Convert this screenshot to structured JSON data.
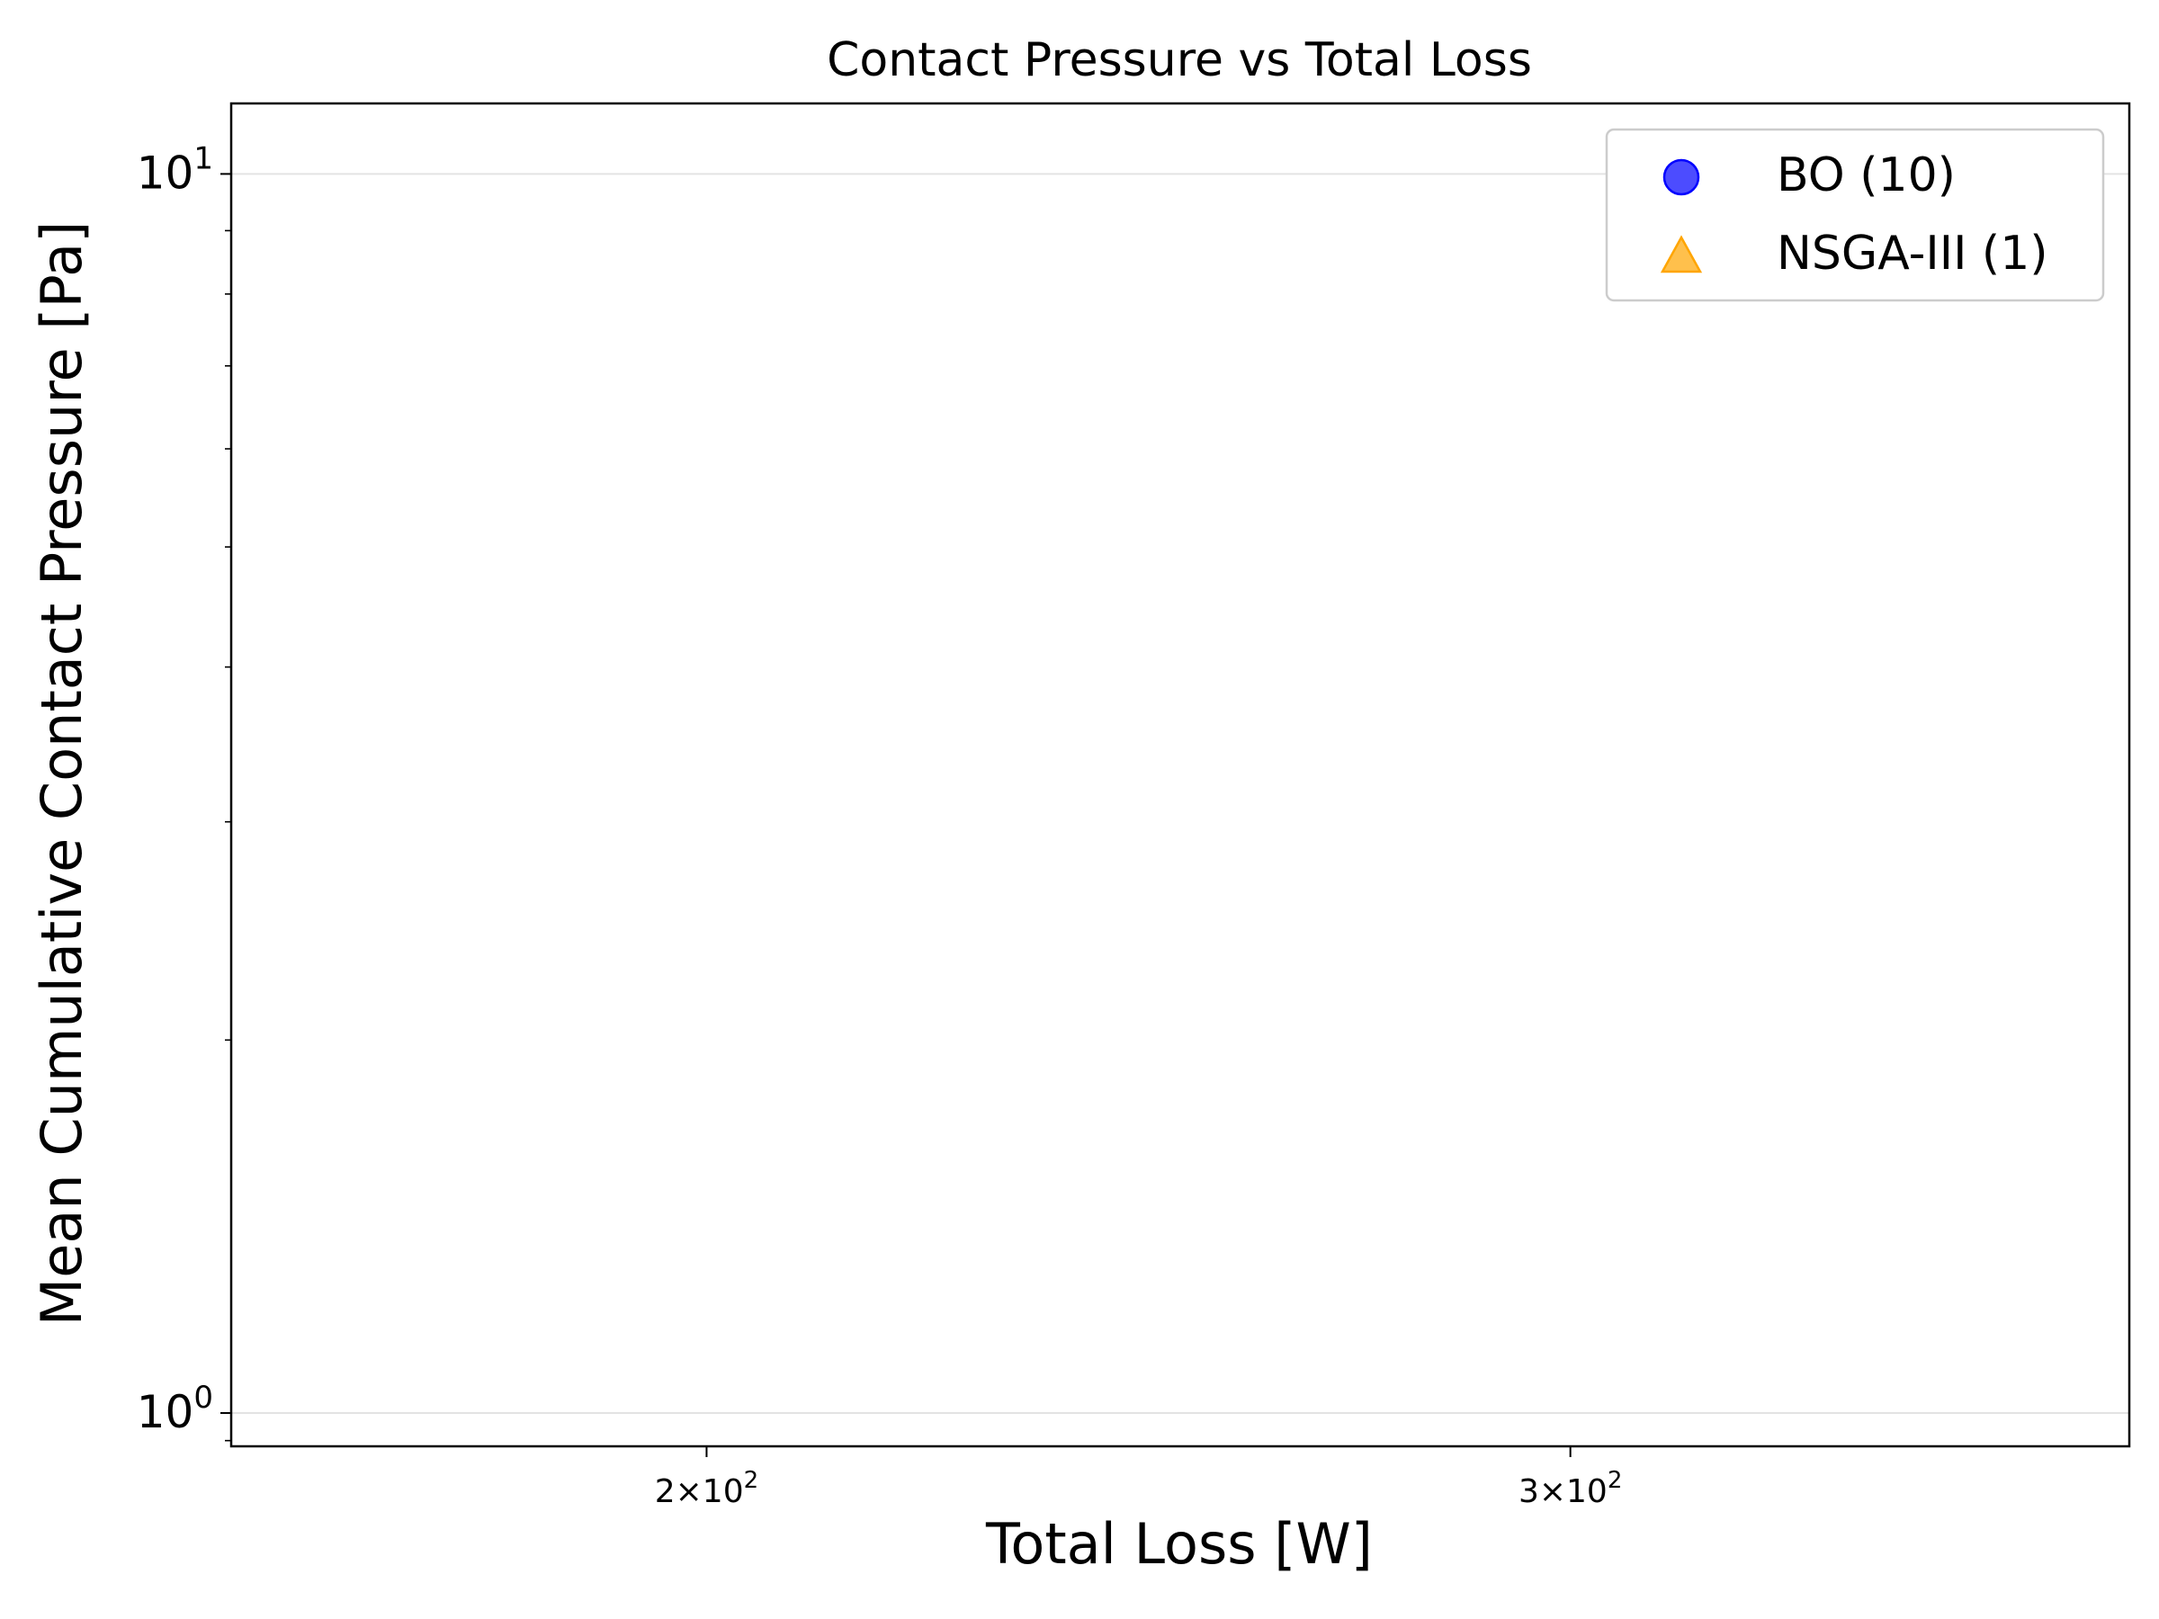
{
  "chart_data": {
    "type": "scatter",
    "title": "Contact Pressure vs Total Loss",
    "xlabel": "Total Loss [W]",
    "ylabel": "Mean Cumulative Contact Pressure [Pa]",
    "xscale": "log",
    "yscale": "log",
    "xlim": [
      160,
      390
    ],
    "ylim": [
      0.94,
      11.4
    ],
    "x_major_ticks": [
      {
        "value": 200,
        "mantissa": "2",
        "base": "10",
        "exp": "2"
      },
      {
        "value": 300,
        "mantissa": "3",
        "base": "10",
        "exp": "2"
      }
    ],
    "y_major_ticks": [
      {
        "value": 1,
        "base": "10",
        "exp": "0"
      },
      {
        "value": 10,
        "base": "10",
        "exp": "1"
      }
    ],
    "y_minor_ticks": [
      2,
      3,
      4,
      5,
      6,
      7,
      8,
      9
    ],
    "grid": "horizontal major",
    "legend_position": "top-right",
    "series": [
      {
        "name": "BO (10)",
        "marker": "circle",
        "color": "#0000ff",
        "points": []
      },
      {
        "name": "NSGA-III (1)",
        "marker": "triangle",
        "color": "#ffa500",
        "points": []
      }
    ]
  }
}
